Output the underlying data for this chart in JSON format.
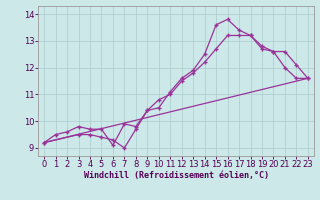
{
  "xlabel": "Windchill (Refroidissement éolien,°C)",
  "bg_color": "#cce8e8",
  "line_color": "#993399",
  "grid_color": "#b0d0d0",
  "xlim": [
    -0.5,
    23.5
  ],
  "ylim": [
    8.7,
    14.3
  ],
  "xticks": [
    0,
    1,
    2,
    3,
    4,
    5,
    6,
    7,
    8,
    9,
    10,
    11,
    12,
    13,
    14,
    15,
    16,
    17,
    18,
    19,
    20,
    21,
    22,
    23
  ],
  "yticks": [
    9,
    10,
    11,
    12,
    13,
    14
  ],
  "series1_x": [
    0,
    1,
    2,
    3,
    4,
    5,
    6,
    7,
    8,
    9,
    10,
    11,
    12,
    13,
    14,
    15,
    16,
    17,
    18,
    19,
    20,
    21,
    22,
    23
  ],
  "series1_y": [
    9.2,
    9.5,
    9.6,
    9.8,
    9.7,
    9.7,
    9.1,
    9.9,
    9.8,
    10.4,
    10.5,
    11.1,
    11.6,
    11.9,
    12.5,
    13.6,
    13.8,
    13.4,
    13.2,
    12.7,
    12.6,
    12.0,
    11.6,
    11.6
  ],
  "series2_x": [
    0,
    3,
    4,
    5,
    6,
    7,
    8,
    9,
    10,
    11,
    12,
    13,
    14,
    15,
    16,
    17,
    18,
    19,
    20,
    21,
    22,
    23
  ],
  "series2_y": [
    9.2,
    9.5,
    9.5,
    9.4,
    9.3,
    9.0,
    9.7,
    10.4,
    10.8,
    11.0,
    11.5,
    11.8,
    12.2,
    12.7,
    13.2,
    13.2,
    13.2,
    12.8,
    12.6,
    12.6,
    12.1,
    11.6
  ],
  "series3_x": [
    0,
    23
  ],
  "series3_y": [
    9.2,
    11.6
  ],
  "markersize": 2.5,
  "linewidth": 0.9,
  "tick_fontsize": 6,
  "xlabel_fontsize": 6
}
